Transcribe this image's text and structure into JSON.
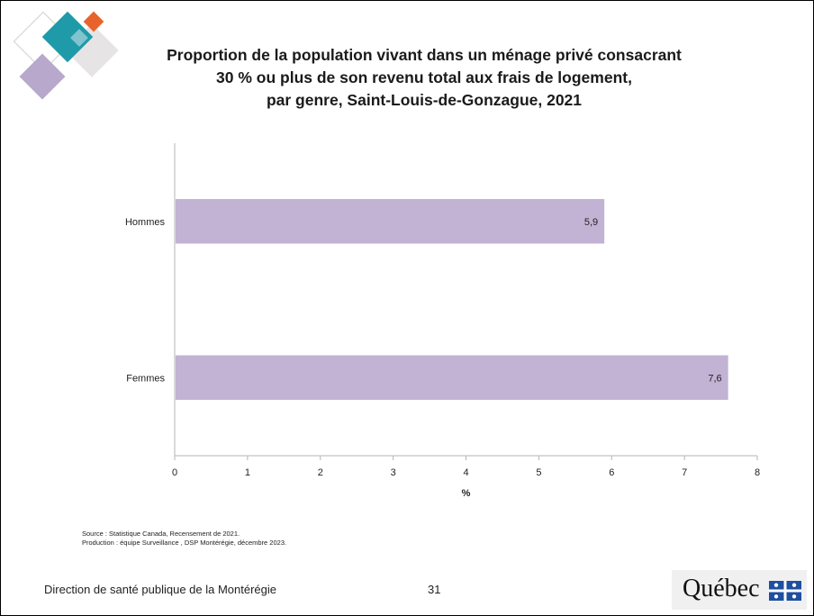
{
  "title_lines": [
    "Proportion de la population vivant dans un ménage privé consacrant",
    "30 % ou plus de son revenu total aux frais de logement,",
    "par genre, Saint-Louis-de-Gonzague, 2021"
  ],
  "chart_data": {
    "type": "bar",
    "orientation": "horizontal",
    "title": "Proportion de la population vivant dans un ménage privé consacrant 30 % ou plus de son revenu total aux frais de logement, par genre, Saint-Louis-de-Gonzague, 2021",
    "categories": [
      "Hommes",
      "Femmes"
    ],
    "values": [
      5.9,
      7.6
    ],
    "value_labels": [
      "5,9",
      "7,6"
    ],
    "xlabel": "%",
    "ylabel": "",
    "xlim": [
      0,
      8
    ],
    "xticks": [
      0,
      1,
      2,
      3,
      4,
      5,
      6,
      7,
      8
    ],
    "grid": false,
    "legend": "none",
    "bar_color": "#c2b2d4"
  },
  "notes": {
    "source": "Source : Statistique Canada, Recensement de 2021.",
    "production": "Production : équipe Surveillance , DSP Montérégie, décembre 2023."
  },
  "footer": {
    "organization": "Direction de santé publique de la Montérégie",
    "page_number": "31",
    "brand": "Québec"
  },
  "colors": {
    "teal": "#1f9aa8",
    "orange": "#e8632b",
    "lavender": "#b7a8cc",
    "light_gray": "#e6e4e4"
  }
}
